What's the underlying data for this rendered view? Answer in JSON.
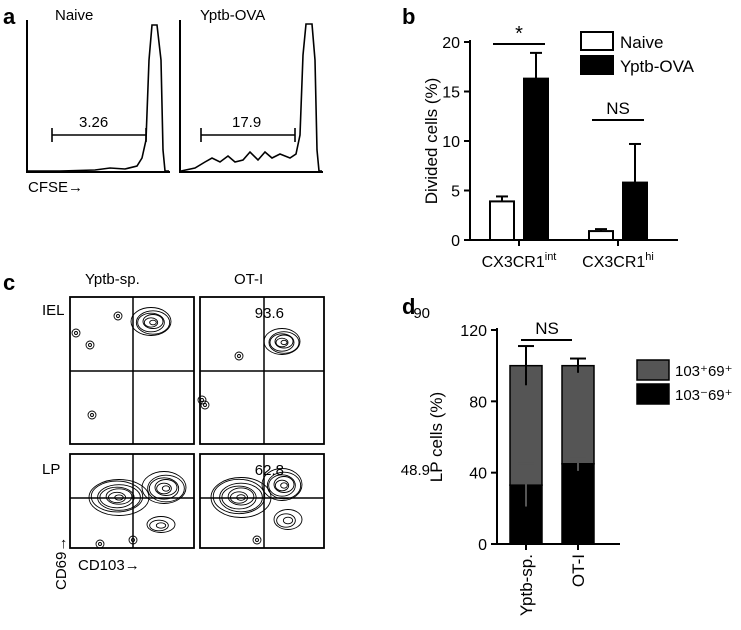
{
  "panels": {
    "a": {
      "letter": "a",
      "histograms": [
        {
          "label": "Naive",
          "gate_value": "3.26"
        },
        {
          "label": "Yptb-OVA",
          "gate_value": "17.9"
        }
      ],
      "xlabel": "CFSE→"
    },
    "b": {
      "letter": "b",
      "annotations": [
        "*",
        "NS"
      ]
    },
    "c": {
      "letter": "c",
      "columns": [
        "Yptb-sp.",
        "OT-I"
      ],
      "rows": [
        "IEL",
        "LP"
      ],
      "quadrant_values": [
        [
          "93.6",
          "90"
        ],
        [
          "62.8",
          "48.9"
        ]
      ],
      "ylabel": "CD69→",
      "xlabel": "CD103→"
    },
    "d": {
      "letter": "d",
      "annotation": "NS"
    }
  },
  "chart_data": [
    {
      "panel": "b",
      "type": "bar",
      "categories": [
        "CX3CR1int",
        "CX3CR1hi"
      ],
      "category_labels": [
        {
          "base": "CX3CR1",
          "sup": "int"
        },
        {
          "base": "CX3CR1",
          "sup": "hi"
        }
      ],
      "ylabel": "Divided cells (%)",
      "ylim": [
        0,
        20
      ],
      "yticks": [
        0,
        5,
        10,
        15,
        20
      ],
      "legend_position": "top-right",
      "series": [
        {
          "name": "Naive",
          "values": [
            3.9,
            0.9
          ],
          "errors": [
            0.5,
            0.2
          ],
          "color": "#ffffff"
        },
        {
          "name": "Yptb-OVA",
          "values": [
            16.3,
            5.8
          ],
          "errors": [
            2.6,
            3.9
          ],
          "color": "#000000"
        }
      ],
      "significance": [
        {
          "category": "CX3CR1int",
          "label": "*"
        },
        {
          "category": "CX3CR1hi",
          "label": "NS"
        }
      ]
    },
    {
      "panel": "d",
      "type": "bar",
      "stacked": true,
      "categories": [
        "Yptb-sp.",
        "OT-I"
      ],
      "ylabel": "LP cells (%)",
      "ylim": [
        0,
        120
      ],
      "yticks": [
        0,
        40,
        80,
        120
      ],
      "legend_position": "right",
      "series": [
        {
          "name": "103⁻69⁺",
          "values": [
            33,
            45
          ],
          "errors": [
            12,
            4
          ],
          "color": "#000000"
        },
        {
          "name": "103⁺69⁺",
          "values": [
            67,
            55
          ],
          "errors": [
            11,
            4
          ],
          "color": "#555555"
        }
      ],
      "significance": [
        {
          "label": "NS"
        }
      ]
    }
  ]
}
